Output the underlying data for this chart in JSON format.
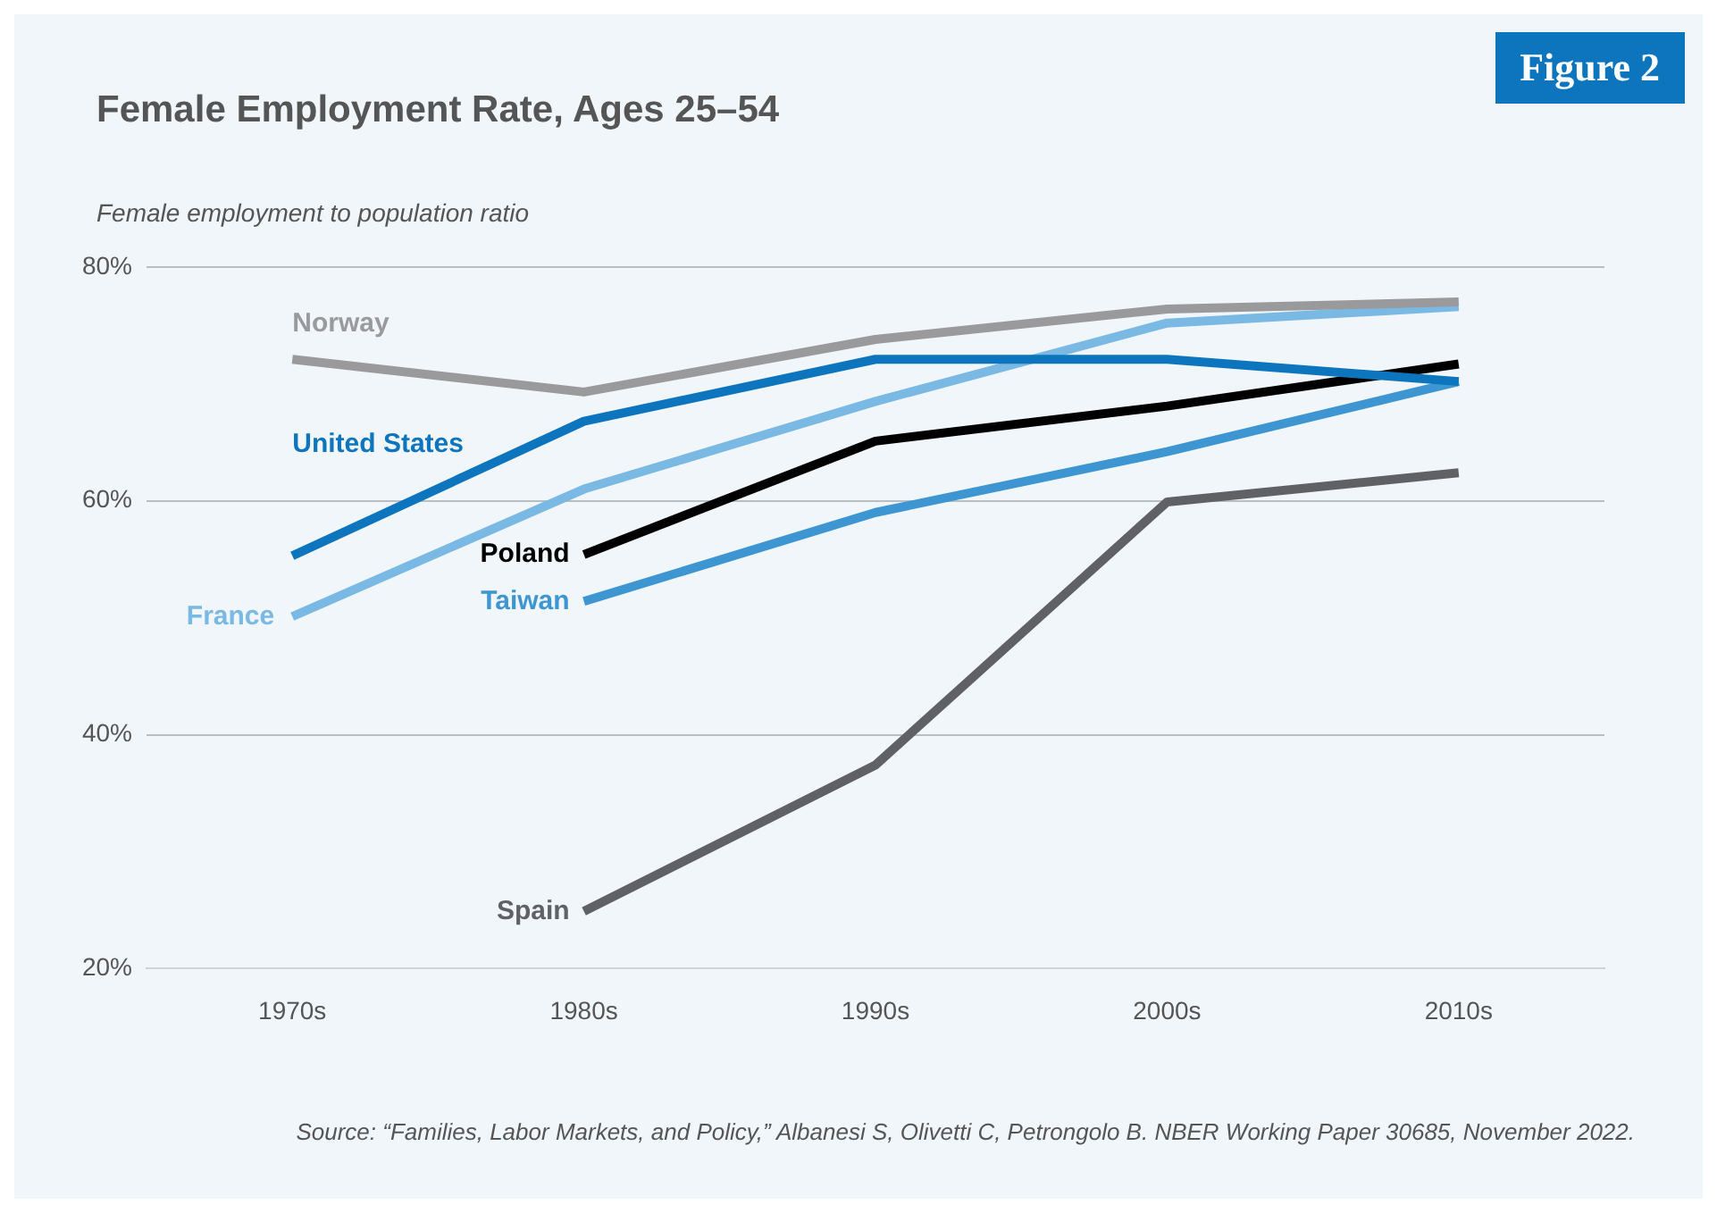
{
  "chart_data": {
    "type": "line",
    "title": "Female Employment Rate, Ages 25–54",
    "ylabel": "Female employment to population ratio",
    "categories": [
      "1970s",
      "1980s",
      "1990s",
      "2000s",
      "2010s"
    ],
    "series": [
      {
        "name": "Norway",
        "color": "#9a9a9c",
        "values": [
          72.1,
          69.3,
          73.8,
          76.4,
          77.0
        ]
      },
      {
        "name": "United States",
        "color": "#0d75bd",
        "values": [
          55.3,
          66.8,
          72.1,
          72.1,
          70.2
        ]
      },
      {
        "name": "France",
        "color": "#7ab9e3",
        "values": [
          50.1,
          61.0,
          68.5,
          75.2,
          76.6
        ]
      },
      {
        "name": "Poland",
        "color": "#000000",
        "values": [
          null,
          55.4,
          65.1,
          68.1,
          71.7
        ]
      },
      {
        "name": "Taiwan",
        "color": "#3d96d2",
        "values": [
          null,
          51.4,
          59.0,
          64.2,
          70.2
        ]
      },
      {
        "name": "Spain",
        "color": "#606164",
        "values": [
          null,
          24.9,
          37.4,
          59.9,
          62.4
        ]
      }
    ],
    "ylim": [
      20,
      80
    ],
    "yticks": [
      {
        "value": 20,
        "label": "20%"
      },
      {
        "value": 40,
        "label": "40%"
      },
      {
        "value": 60,
        "label": "60%"
      },
      {
        "value": 80,
        "label": "80%"
      }
    ],
    "grid": "y",
    "legend": false,
    "marker": "none",
    "line_style": "solid",
    "annotations": [
      "Figure 2",
      "Source: “Families, Labor Markets, and Policy,” Albanesi S, Olivetti C, Petrongolo B. NBER Working Paper 30685, November 2022."
    ]
  }
}
